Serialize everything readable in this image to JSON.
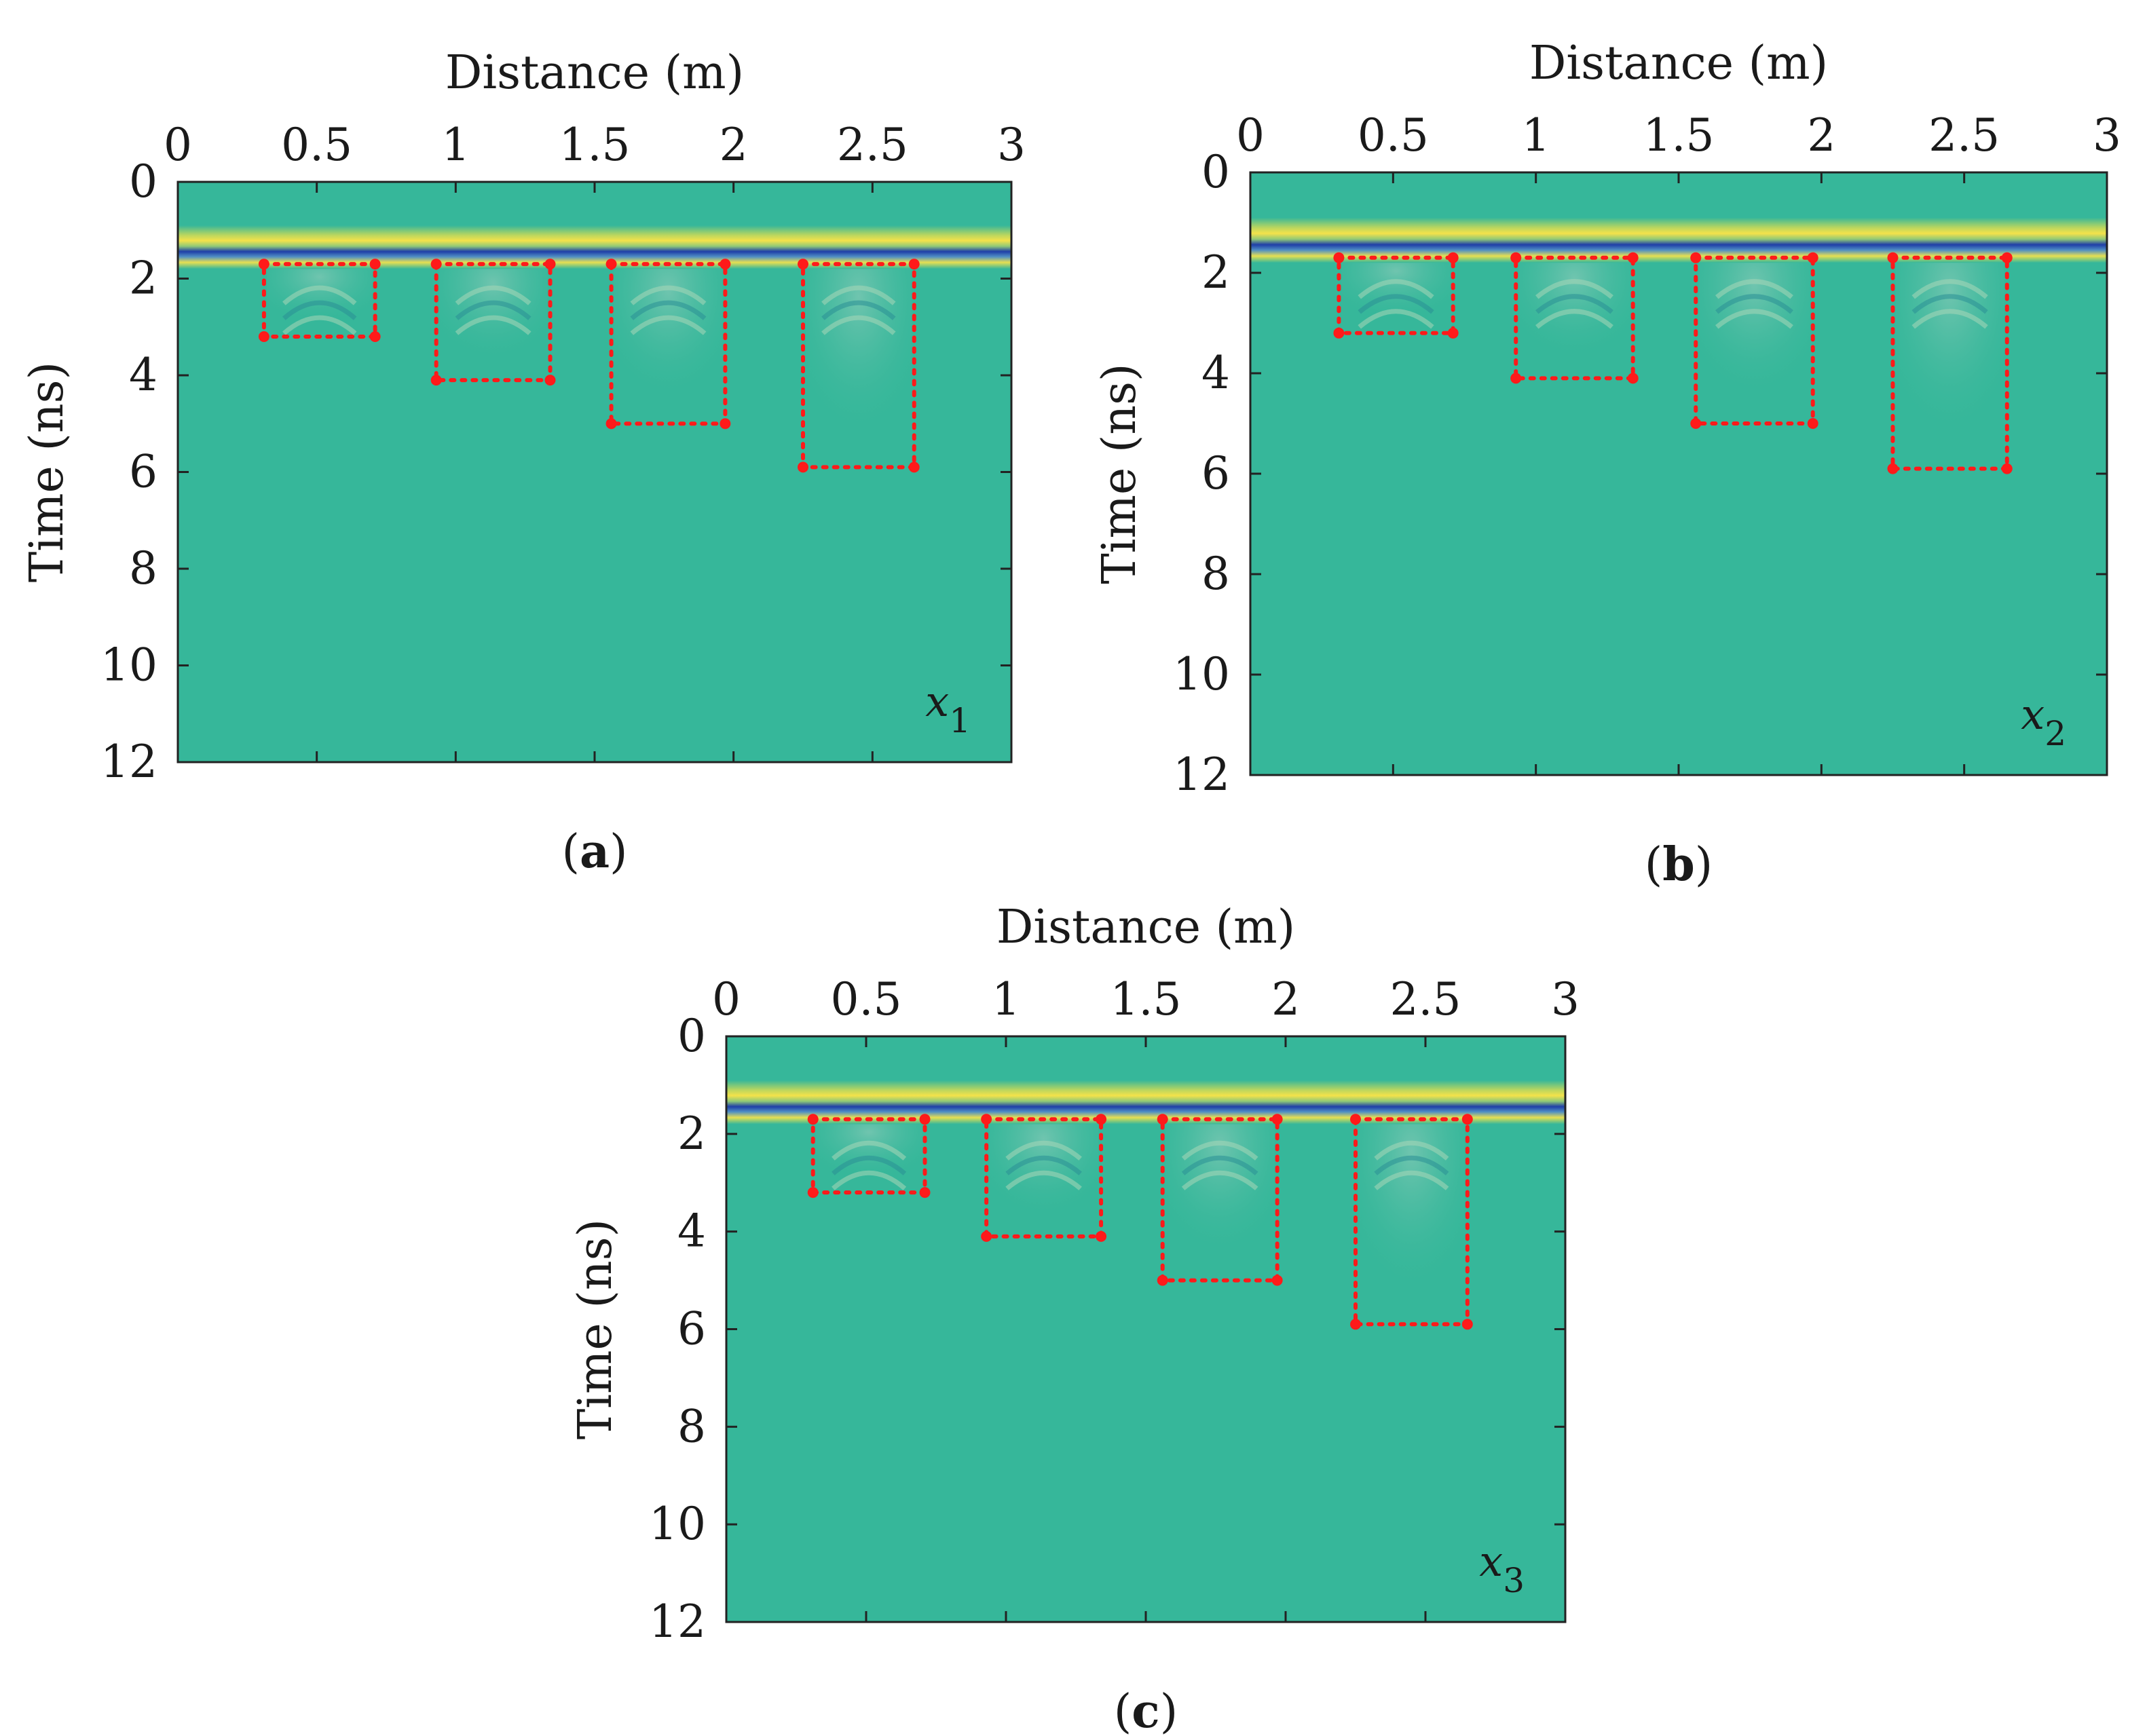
{
  "figure": {
    "type": "heatmap",
    "description_colors": {
      "background": "#36b79a",
      "bright_band": "#f4e24a",
      "dark_band": "#1f3ea8",
      "box_color": "#ff1a1a"
    }
  },
  "chart_data": [
    {
      "type": "heatmap",
      "panel": "(a)",
      "panel_letter": "a",
      "label_var": "x",
      "label_sub": "1",
      "xlabel": "Distance (m)",
      "ylabel": "Time (ns)",
      "xlim": [
        0,
        3
      ],
      "ylim": [
        12,
        0
      ],
      "xticks": [
        0,
        0.5,
        1,
        1.5,
        2,
        2.5,
        3
      ],
      "xtick_labels": [
        "0",
        "0.5",
        "1",
        "1.5",
        "2",
        "2.5",
        "3"
      ],
      "yticks": [
        0,
        2,
        4,
        6,
        8,
        10,
        12
      ],
      "ytick_labels": [
        "0",
        "2",
        "4",
        "6",
        "8",
        "10",
        "12"
      ],
      "surface_reflection_time": 1.35,
      "boxes": [
        {
          "x0": 0.31,
          "x1": 0.71,
          "t0": 1.7,
          "t1": 3.2
        },
        {
          "x0": 0.93,
          "x1": 1.34,
          "t0": 1.7,
          "t1": 4.1
        },
        {
          "x0": 1.56,
          "x1": 1.97,
          "t0": 1.7,
          "t1": 5.0
        },
        {
          "x0": 2.25,
          "x1": 2.65,
          "t0": 1.7,
          "t1": 5.9
        }
      ]
    },
    {
      "type": "heatmap",
      "panel": "(b)",
      "panel_letter": "b",
      "label_var": "x",
      "label_sub": "2",
      "xlabel": "Distance (m)",
      "ylabel": "Time (ns)",
      "xlim": [
        0,
        3
      ],
      "ylim": [
        12,
        0
      ],
      "xticks": [
        0,
        0.5,
        1,
        1.5,
        2,
        2.5,
        3
      ],
      "xtick_labels": [
        "0",
        "0.5",
        "1",
        "1.5",
        "2",
        "2.5",
        "3"
      ],
      "yticks": [
        0,
        2,
        4,
        6,
        8,
        10,
        12
      ],
      "ytick_labels": [
        "0",
        "2",
        "4",
        "6",
        "8",
        "10",
        "12"
      ],
      "surface_reflection_time": 1.35,
      "boxes": [
        {
          "x0": 0.31,
          "x1": 0.71,
          "t0": 1.7,
          "t1": 3.2
        },
        {
          "x0": 0.93,
          "x1": 1.34,
          "t0": 1.7,
          "t1": 4.1
        },
        {
          "x0": 1.56,
          "x1": 1.97,
          "t0": 1.7,
          "t1": 5.0
        },
        {
          "x0": 2.25,
          "x1": 2.65,
          "t0": 1.7,
          "t1": 5.9
        }
      ]
    },
    {
      "type": "heatmap",
      "panel": "(c)",
      "panel_letter": "c",
      "label_var": "x",
      "label_sub": "3",
      "xlabel": "Distance (m)",
      "ylabel": "Time (ns)",
      "xlim": [
        0,
        3
      ],
      "ylim": [
        12,
        0
      ],
      "xticks": [
        0,
        0.5,
        1,
        1.5,
        2,
        2.5,
        3
      ],
      "xtick_labels": [
        "0",
        "0.5",
        "1",
        "1.5",
        "2",
        "2.5",
        "3"
      ],
      "yticks": [
        0,
        2,
        4,
        6,
        8,
        10,
        12
      ],
      "ytick_labels": [
        "0",
        "2",
        "4",
        "6",
        "8",
        "10",
        "12"
      ],
      "surface_reflection_time": 1.35,
      "boxes": [
        {
          "x0": 0.31,
          "x1": 0.71,
          "t0": 1.7,
          "t1": 3.2
        },
        {
          "x0": 0.93,
          "x1": 1.34,
          "t0": 1.7,
          "t1": 4.1
        },
        {
          "x0": 1.56,
          "x1": 1.97,
          "t0": 1.7,
          "t1": 5.0
        },
        {
          "x0": 2.25,
          "x1": 2.65,
          "t0": 1.7,
          "t1": 5.9
        }
      ]
    }
  ]
}
